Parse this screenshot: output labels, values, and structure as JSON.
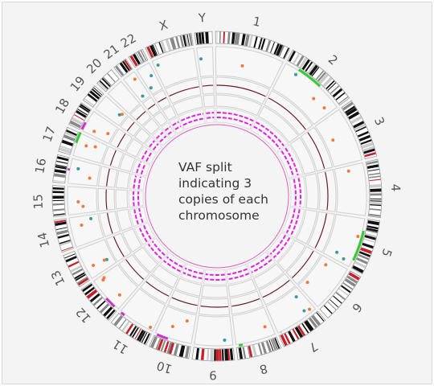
{
  "chromosomes": [
    "1",
    "2",
    "3",
    "4",
    "5",
    "6",
    "7",
    "8",
    "9",
    "10",
    "11",
    "12",
    "13",
    "14",
    "15",
    "16",
    "17",
    "18",
    "19",
    "20",
    "21",
    "22",
    "X",
    "Y"
  ],
  "annotation": {
    "lines": [
      "VAF split",
      "indicating 3",
      "copies of each",
      "chromosome"
    ]
  }
}
